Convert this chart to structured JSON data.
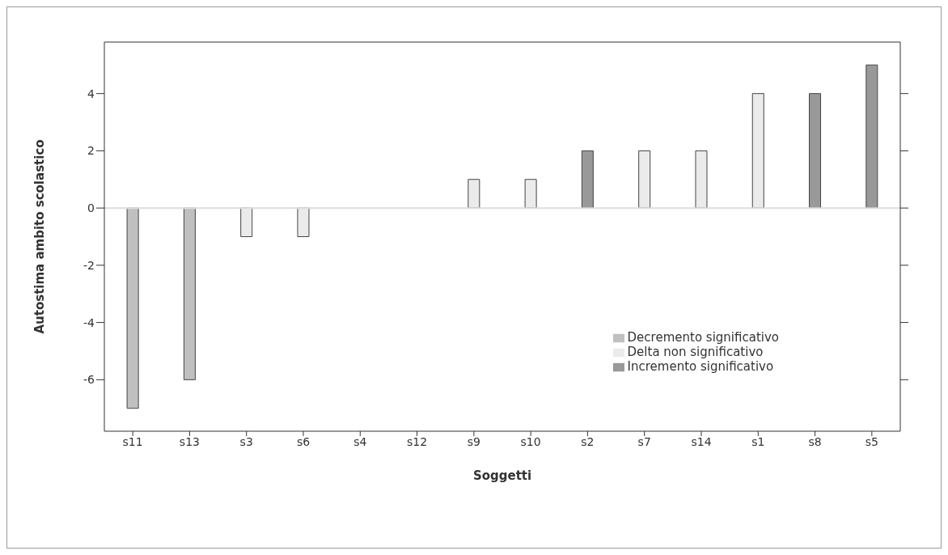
{
  "chart_data": {
    "type": "bar",
    "xlabel": "Soggetti",
    "ylabel": "Autostima ambito scolastico",
    "categories": [
      "s11",
      "s13",
      "s3",
      "s6",
      "s4",
      "s12",
      "s9",
      "s10",
      "s2",
      "s7",
      "s14",
      "s1",
      "s8",
      "s5"
    ],
    "stacked": true,
    "series": [
      {
        "name": "Delta non significativo",
        "color": "#ebebeb",
        "values": [
          null,
          null,
          -1,
          -1,
          0,
          0,
          1,
          1,
          null,
          2,
          2,
          4,
          null,
          null
        ]
      },
      {
        "name": "Decremento significativo",
        "color": "#c0c0c0",
        "values": [
          -7,
          -6,
          null,
          null,
          null,
          null,
          null,
          null,
          null,
          null,
          null,
          null,
          null,
          null
        ]
      },
      {
        "name": "Incremento significativo",
        "color": "#999999",
        "values": [
          null,
          null,
          null,
          null,
          null,
          null,
          null,
          null,
          2,
          null,
          null,
          null,
          4,
          5
        ]
      }
    ],
    "ylim": [
      -7.8,
      5.8
    ],
    "yticks": [
      -6,
      -4,
      -2,
      0,
      2,
      4
    ],
    "ref_lines": [
      {
        "axis": "y",
        "value": 0,
        "color": "#dddddd"
      }
    ],
    "legend": "bottom right",
    "grid": false
  }
}
